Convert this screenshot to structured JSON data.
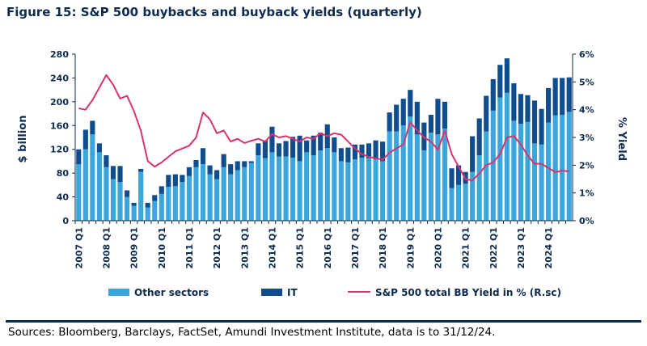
{
  "title": "Figure 15: S&P 500 buybacks and buyback yields (quarterly)",
  "source": "Sources: Bloomberg, Barclays, FactSet, Amundi Investment Institute, data is to 31/12/24.",
  "colors": {
    "other": "#3aa6dc",
    "it": "#0f4d8f",
    "yield": "#d9336b",
    "text": "#0d2a4f"
  },
  "chart_data": {
    "type": "bar",
    "stacked": true,
    "title": "Figure 15: S&P 500 buybacks and buyback yields (quarterly)",
    "ylabel": "$ billion",
    "y2label": "% Yield",
    "ylim": [
      0,
      280
    ],
    "y2lim": [
      0,
      6
    ],
    "yticks": [
      "0",
      "40",
      "80",
      "120",
      "160",
      "200",
      "240",
      "280"
    ],
    "y2ticks": [
      "0%",
      "1%",
      "2%",
      "3%",
      "4%",
      "5%",
      "6%"
    ],
    "xtick_labels": [
      "2007 Q1",
      "2008 Q1",
      "2009 Q1",
      "2010 Q1",
      "2011 Q1",
      "2012 Q1",
      "2013 Q1",
      "2014 Q1",
      "2015 Q1",
      "2016 Q1",
      "2017 Q1",
      "2018 Q1",
      "2019 Q1",
      "2020 Q1",
      "2021 Q1",
      "2022 Q1",
      "2023 Q1",
      "2024 Q1"
    ],
    "legend_position": "bottom",
    "categories": [
      "2007 Q1",
      "2007 Q2",
      "2007 Q3",
      "2007 Q4",
      "2008 Q1",
      "2008 Q2",
      "2008 Q3",
      "2008 Q4",
      "2009 Q1",
      "2009 Q2",
      "2009 Q3",
      "2009 Q4",
      "2010 Q1",
      "2010 Q2",
      "2010 Q3",
      "2010 Q4",
      "2011 Q1",
      "2011 Q2",
      "2011 Q3",
      "2011 Q4",
      "2012 Q1",
      "2012 Q2",
      "2012 Q3",
      "2012 Q4",
      "2013 Q1",
      "2013 Q2",
      "2013 Q3",
      "2013 Q4",
      "2014 Q1",
      "2014 Q2",
      "2014 Q3",
      "2014 Q4",
      "2015 Q1",
      "2015 Q2",
      "2015 Q3",
      "2015 Q4",
      "2016 Q1",
      "2016 Q2",
      "2016 Q3",
      "2016 Q4",
      "2017 Q1",
      "2017 Q2",
      "2017 Q3",
      "2017 Q4",
      "2018 Q1",
      "2018 Q2",
      "2018 Q3",
      "2018 Q4",
      "2019 Q1",
      "2019 Q2",
      "2019 Q3",
      "2019 Q4",
      "2020 Q1",
      "2020 Q2",
      "2020 Q3",
      "2020 Q4",
      "2021 Q1",
      "2021 Q2",
      "2021 Q3",
      "2021 Q4",
      "2022 Q1",
      "2022 Q2",
      "2022 Q3",
      "2022 Q4",
      "2023 Q1",
      "2023 Q2",
      "2023 Q3",
      "2023 Q4",
      "2024 Q1",
      "2024 Q2",
      "2024 Q3",
      "2024 Q4"
    ],
    "series": [
      {
        "name": "Other sectors",
        "kind": "bar",
        "axis": "left",
        "values": [
          95,
          120,
          145,
          115,
          90,
          70,
          65,
          40,
          25,
          82,
          22,
          33,
          45,
          57,
          58,
          65,
          75,
          90,
          95,
          78,
          70,
          90,
          78,
          85,
          90,
          97,
          110,
          105,
          115,
          108,
          108,
          106,
          100,
          115,
          110,
          118,
          122,
          115,
          100,
          98,
          103,
          106,
          105,
          103,
          100,
          150,
          150,
          160,
          175,
          145,
          118,
          148,
          145,
          155,
          55,
          60,
          62,
          82,
          110,
          150,
          185,
          207,
          215,
          168,
          163,
          166,
          130,
          128,
          165,
          177,
          178,
          183
        ]
      },
      {
        "name": "IT",
        "kind": "bar",
        "axis": "left",
        "values": [
          25,
          33,
          23,
          15,
          20,
          22,
          27,
          11,
          5,
          5,
          8,
          10,
          13,
          20,
          20,
          12,
          15,
          12,
          27,
          15,
          15,
          22,
          17,
          15,
          10,
          3,
          20,
          30,
          43,
          22,
          26,
          35,
          43,
          20,
          33,
          30,
          40,
          25,
          22,
          25,
          25,
          22,
          25,
          32,
          33,
          32,
          45,
          45,
          45,
          55,
          47,
          30,
          60,
          45,
          33,
          33,
          20,
          60,
          62,
          60,
          53,
          55,
          58,
          63,
          50,
          45,
          72,
          60,
          58,
          63,
          62,
          58
        ]
      },
      {
        "name": "S&P 500 total BB Yield in % (R.sc)",
        "kind": "line",
        "axis": "right",
        "values": [
          4.05,
          4.0,
          4.35,
          4.8,
          5.25,
          4.9,
          4.4,
          4.5,
          3.95,
          3.25,
          2.15,
          1.95,
          2.1,
          2.3,
          2.5,
          2.6,
          2.7,
          3.0,
          3.9,
          3.65,
          3.15,
          3.25,
          2.85,
          2.95,
          2.8,
          2.88,
          2.95,
          2.85,
          3.12,
          3.0,
          3.05,
          2.95,
          2.85,
          3.0,
          2.95,
          3.15,
          3.05,
          3.15,
          3.1,
          2.85,
          2.6,
          2.4,
          2.3,
          2.25,
          2.2,
          2.45,
          2.6,
          2.75,
          3.55,
          3.25,
          3.0,
          2.85,
          2.55,
          3.25,
          2.4,
          1.95,
          1.5,
          1.45,
          1.7,
          2.0,
          2.1,
          2.4,
          3.0,
          3.05,
          2.75,
          2.35,
          2.05,
          2.05,
          1.9,
          1.75,
          1.8,
          1.78
        ]
      }
    ]
  }
}
